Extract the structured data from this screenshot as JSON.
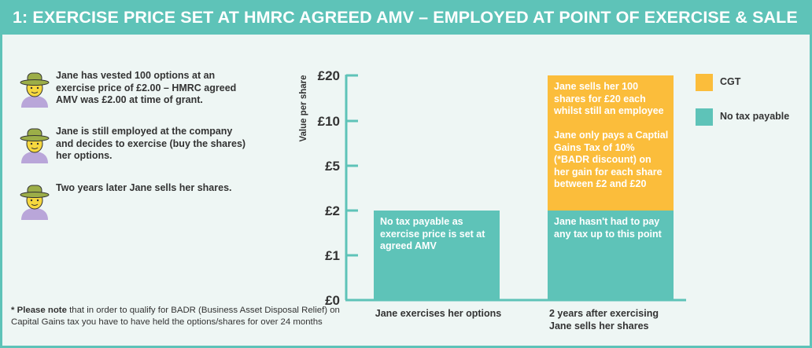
{
  "colors": {
    "teal": "#5ec3b8",
    "orange": "#fbbd3b",
    "text": "#333333"
  },
  "title": "1: EXERCISE PRICE SET AT HMRC AGREED AMV – EMPLOYED AT POINT OF EXERCISE & SALE",
  "stories": [
    {
      "icon": "person-with-hat-icon",
      "text": "Jane has vested 100 options at an exercise price of £2.00 – HMRC agreed AMV was £2.00 at time of grant."
    },
    {
      "icon": "person-with-hat-icon",
      "text": "Jane is still employed at the company and decides to exercise (buy the shares) her options."
    },
    {
      "icon": "person-with-hat-icon",
      "text": "Two years later Jane sells her shares."
    }
  ],
  "footnote": {
    "bold": "* Please note",
    "text": " that in order to qualify for BADR (Business Asset Disposal Relief) on Capital Gains tax you have to have held the options/shares for over 24 months"
  },
  "chart_data": {
    "type": "bar",
    "stacked": true,
    "ylabel": "Value per share",
    "ytick_labels": [
      "£0",
      "£1",
      "£2",
      "£5",
      "£10",
      "£20"
    ],
    "categories": [
      "Jane exercises her options",
      "2 years after exercising Jane sells her shares"
    ],
    "series": [
      {
        "name": "No tax payable",
        "color": "#5ec3b8",
        "values": [
          2,
          2
        ],
        "labels": [
          "No tax payable as exercise price is set at agreed AMV",
          "Jane hasn't had to pay any tax up to this point"
        ]
      },
      {
        "name": "CGT",
        "color": "#fbbd3b",
        "values": [
          0,
          18
        ],
        "labels": [
          "",
          "Jane sells her 100 shares for £20 each whilst still an employee\n\nJane only pays a Captial Gains Tax of 10% (*BADR discount) on her gain for each share between £2 and £20"
        ]
      }
    ],
    "legend": [
      {
        "label": "CGT",
        "color": "#fbbd3b"
      },
      {
        "label": "No tax payable",
        "color": "#5ec3b8"
      }
    ],
    "legend_position": "right",
    "grid": false
  }
}
